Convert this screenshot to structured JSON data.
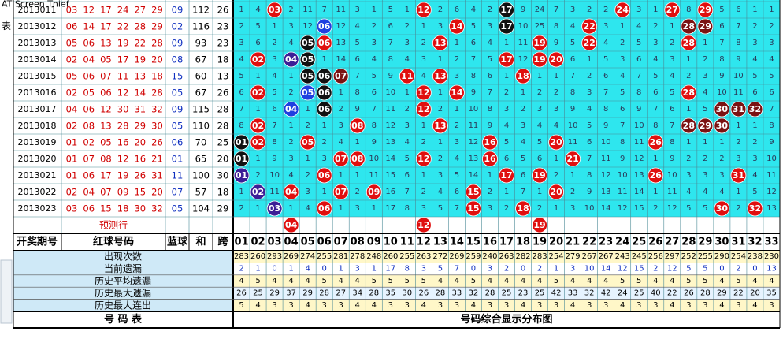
{
  "window_title": "AT Screen Thief",
  "side_text": "表",
  "header": {
    "period": "开奖期号",
    "red": "红球号码",
    "blue": "蓝球",
    "sum": "和",
    "span": "跨",
    "numbers": [
      "01",
      "02",
      "03",
      "04",
      "05",
      "06",
      "07",
      "08",
      "09",
      "10",
      "11",
      "12",
      "13",
      "14",
      "15",
      "16",
      "17",
      "18",
      "19",
      "20",
      "21",
      "22",
      "23",
      "24",
      "25",
      "26",
      "27",
      "28",
      "29",
      "30",
      "31",
      "32",
      "33"
    ]
  },
  "rows": [
    {
      "period": "2013011",
      "reds": [
        "03",
        "12",
        "17",
        "24",
        "27",
        "29"
      ],
      "blue": "09",
      "sum": 112,
      "span": 26,
      "cells": [
        1,
        4,
        {
          "text": "03",
          "color": "#e00f0f"
        },
        2,
        11,
        7,
        11,
        3,
        1,
        5,
        1,
        {
          "text": "12",
          "color": "#e00f0f"
        },
        2,
        6,
        4,
        2,
        {
          "text": "17",
          "color": "#111111"
        },
        9,
        24,
        7,
        3,
        2,
        2,
        {
          "text": "24",
          "color": "#e00f0f"
        },
        3,
        1,
        {
          "text": "27",
          "color": "#e00f0f"
        },
        8,
        {
          "text": "29",
          "color": "#e00f0f"
        },
        5,
        6,
        1,
        1
      ]
    },
    {
      "period": "2013012",
      "reds": [
        "06",
        "14",
        "17",
        "22",
        "28",
        "29"
      ],
      "blue": "02",
      "sum": 116,
      "span": 23,
      "cells": [
        2,
        5,
        1,
        3,
        12,
        {
          "text": "06",
          "color": "#1f3fe0"
        },
        12,
        4,
        2,
        6,
        2,
        1,
        3,
        {
          "text": "14",
          "color": "#e00f0f"
        },
        5,
        3,
        {
          "text": "17",
          "color": "#111111"
        },
        10,
        25,
        8,
        4,
        {
          "text": "22",
          "color": "#e00f0f"
        },
        3,
        1,
        4,
        2,
        1,
        {
          "text": "28",
          "color": "#7b1212"
        },
        {
          "text": "29",
          "color": "#7b1212"
        },
        6,
        7,
        2,
        2
      ]
    },
    {
      "period": "2013013",
      "reds": [
        "05",
        "06",
        "13",
        "19",
        "22",
        "28"
      ],
      "blue": "09",
      "sum": 93,
      "span": 23,
      "cells": [
        3,
        6,
        2,
        4,
        {
          "text": "05",
          "color": "#111111"
        },
        {
          "text": "06",
          "color": "#e00f0f"
        },
        13,
        5,
        3,
        7,
        3,
        2,
        {
          "text": "13",
          "color": "#e00f0f"
        },
        1,
        6,
        4,
        1,
        11,
        {
          "text": "19",
          "color": "#e00f0f"
        },
        9,
        5,
        {
          "text": "22",
          "color": "#e00f0f"
        },
        4,
        2,
        5,
        3,
        2,
        {
          "text": "28",
          "color": "#e00f0f"
        },
        1,
        7,
        8,
        3,
        3
      ]
    },
    {
      "period": "2013014",
      "reds": [
        "02",
        "04",
        "05",
        "17",
        "19",
        "20"
      ],
      "blue": "08",
      "sum": 67,
      "span": 18,
      "cells": [
        4,
        {
          "text": "02",
          "color": "#e00f0f"
        },
        3,
        {
          "text": "04",
          "color": "#3c1e96"
        },
        {
          "text": "05",
          "color": "#111111"
        },
        1,
        14,
        6,
        4,
        8,
        4,
        3,
        1,
        2,
        7,
        5,
        {
          "text": "17",
          "color": "#e00f0f"
        },
        12,
        {
          "text": "19",
          "color": "#e00f0f"
        },
        {
          "text": "20",
          "color": "#e00f0f"
        },
        6,
        1,
        5,
        3,
        6,
        4,
        3,
        1,
        2,
        8,
        9,
        4,
        4
      ]
    },
    {
      "period": "2013015",
      "reds": [
        "05",
        "06",
        "07",
        "11",
        "13",
        "18"
      ],
      "blue": "15",
      "sum": 60,
      "span": 13,
      "cells": [
        5,
        1,
        4,
        1,
        {
          "text": "05",
          "color": "#111111"
        },
        {
          "text": "06",
          "color": "#111111"
        },
        {
          "text": "07",
          "color": "#7b1212"
        },
        7,
        5,
        9,
        {
          "text": "11",
          "color": "#e00f0f"
        },
        4,
        {
          "text": "13",
          "color": "#e00f0f"
        },
        3,
        8,
        6,
        1,
        {
          "text": "18",
          "color": "#e00f0f"
        },
        1,
        1,
        7,
        2,
        6,
        4,
        7,
        5,
        4,
        2,
        3,
        9,
        10,
        5,
        5
      ]
    },
    {
      "period": "2013016",
      "reds": [
        "02",
        "05",
        "06",
        "12",
        "14",
        "28"
      ],
      "blue": "05",
      "sum": 67,
      "span": 26,
      "cells": [
        6,
        {
          "text": "02",
          "color": "#e00f0f"
        },
        5,
        2,
        {
          "text": "05",
          "color": "#1f3fe0"
        },
        {
          "text": "06",
          "color": "#111111"
        },
        1,
        8,
        6,
        10,
        1,
        {
          "text": "12",
          "color": "#e00f0f"
        },
        1,
        {
          "text": "14",
          "color": "#e00f0f"
        },
        9,
        7,
        2,
        1,
        2,
        2,
        8,
        3,
        7,
        5,
        8,
        6,
        5,
        {
          "text": "28",
          "color": "#e00f0f"
        },
        4,
        10,
        11,
        6,
        6
      ]
    },
    {
      "period": "2013017",
      "reds": [
        "04",
        "06",
        "12",
        "30",
        "31",
        "32"
      ],
      "blue": "09",
      "sum": 115,
      "span": 28,
      "cells": [
        7,
        1,
        6,
        {
          "text": "04",
          "color": "#1f3fe0"
        },
        1,
        {
          "text": "06",
          "color": "#111111"
        },
        2,
        9,
        7,
        11,
        2,
        {
          "text": "12",
          "color": "#e00f0f"
        },
        2,
        1,
        10,
        8,
        3,
        2,
        3,
        3,
        9,
        4,
        8,
        6,
        9,
        7,
        6,
        1,
        5,
        {
          "text": "30",
          "color": "#7b1212"
        },
        {
          "text": "31",
          "color": "#7b1212"
        },
        {
          "text": "32",
          "color": "#7b1212"
        },
        7
      ]
    },
    {
      "period": "2013018",
      "reds": [
        "02",
        "08",
        "13",
        "28",
        "29",
        "30"
      ],
      "blue": "05",
      "sum": 110,
      "span": 28,
      "cells": [
        8,
        {
          "text": "02",
          "color": "#e00f0f"
        },
        7,
        1,
        2,
        1,
        3,
        {
          "text": "08",
          "color": "#e00f0f"
        },
        8,
        12,
        3,
        1,
        {
          "text": "13",
          "color": "#e00f0f"
        },
        2,
        11,
        9,
        4,
        3,
        4,
        4,
        10,
        5,
        9,
        7,
        10,
        8,
        7,
        {
          "text": "28",
          "color": "#7b1212"
        },
        {
          "text": "29",
          "color": "#7b1212"
        },
        {
          "text": "30",
          "color": "#7b1212"
        },
        1,
        1,
        8
      ]
    },
    {
      "period": "2013019",
      "reds": [
        "01",
        "02",
        "05",
        "16",
        "20",
        "26"
      ],
      "blue": "06",
      "sum": 70,
      "span": 25,
      "cells": [
        {
          "text": "01",
          "color": "#111111"
        },
        {
          "text": "02",
          "color": "#e00f0f"
        },
        8,
        2,
        {
          "text": "05",
          "color": "#e00f0f"
        },
        2,
        4,
        1,
        9,
        13,
        4,
        2,
        1,
        3,
        12,
        {
          "text": "16",
          "color": "#e00f0f"
        },
        5,
        4,
        5,
        {
          "text": "20",
          "color": "#e00f0f"
        },
        11,
        6,
        10,
        8,
        11,
        {
          "text": "26",
          "color": "#e00f0f"
        },
        8,
        1,
        1,
        1,
        2,
        2,
        9
      ]
    },
    {
      "period": "2013020",
      "reds": [
        "01",
        "07",
        "08",
        "12",
        "16",
        "21"
      ],
      "blue": "01",
      "sum": 65,
      "span": 20,
      "cells": [
        {
          "text": "01",
          "color": "#111111"
        },
        1,
        9,
        3,
        1,
        3,
        {
          "text": "07",
          "color": "#e00f0f"
        },
        {
          "text": "08",
          "color": "#e00f0f"
        },
        10,
        14,
        5,
        {
          "text": "12",
          "color": "#e00f0f"
        },
        2,
        4,
        13,
        {
          "text": "16",
          "color": "#e00f0f"
        },
        6,
        5,
        6,
        1,
        {
          "text": "21",
          "color": "#e00f0f"
        },
        7,
        11,
        9,
        12,
        1,
        9,
        2,
        2,
        2,
        3,
        3,
        10
      ]
    },
    {
      "period": "2013021",
      "reds": [
        "01",
        "06",
        "17",
        "19",
        "26",
        "31"
      ],
      "blue": "11",
      "sum": 100,
      "span": 30,
      "cells": [
        {
          "text": "01",
          "color": "#3c1e96"
        },
        2,
        10,
        4,
        2,
        {
          "text": "06",
          "color": "#e00f0f"
        },
        1,
        1,
        11,
        15,
        6,
        1,
        3,
        5,
        14,
        1,
        {
          "text": "17",
          "color": "#e00f0f"
        },
        6,
        {
          "text": "19",
          "color": "#e00f0f"
        },
        2,
        1,
        8,
        12,
        10,
        13,
        {
          "text": "26",
          "color": "#e00f0f"
        },
        10,
        3,
        3,
        3,
        {
          "text": "31",
          "color": "#e00f0f"
        },
        4,
        11
      ]
    },
    {
      "period": "2013022",
      "reds": [
        "02",
        "04",
        "07",
        "09",
        "15",
        "20"
      ],
      "blue": "07",
      "sum": 57,
      "span": 18,
      "cells": [
        1,
        {
          "text": "02",
          "color": "#3c1e96"
        },
        11,
        {
          "text": "04",
          "color": "#e00f0f"
        },
        3,
        1,
        {
          "text": "07",
          "color": "#e00f0f"
        },
        2,
        {
          "text": "09",
          "color": "#e00f0f"
        },
        16,
        7,
        2,
        4,
        6,
        {
          "text": "15",
          "color": "#e00f0f"
        },
        2,
        1,
        7,
        1,
        {
          "text": "20",
          "color": "#e00f0f"
        },
        2,
        9,
        13,
        11,
        14,
        1,
        11,
        4,
        4,
        4,
        1,
        5,
        12
      ]
    },
    {
      "period": "2013023",
      "reds": [
        "03",
        "06",
        "15",
        "18",
        "30",
        "32"
      ],
      "blue": "05",
      "sum": 104,
      "span": 29,
      "cells": [
        2,
        1,
        {
          "text": "03",
          "color": "#3c1e96"
        },
        1,
        4,
        {
          "text": "06",
          "color": "#e00f0f"
        },
        1,
        3,
        1,
        17,
        8,
        3,
        5,
        7,
        {
          "text": "15",
          "color": "#e00f0f"
        },
        3,
        2,
        {
          "text": "18",
          "color": "#e00f0f"
        },
        2,
        1,
        3,
        10,
        14,
        12,
        15,
        2,
        12,
        5,
        5,
        {
          "text": "30",
          "color": "#e00f0f"
        },
        2,
        {
          "text": "32",
          "color": "#e00f0f"
        },
        13
      ]
    }
  ],
  "predict": {
    "label": "预测行",
    "balls": [
      {
        "text": "04",
        "color": "#e00f0f"
      },
      {
        "text": "12",
        "color": "#e00f0f"
      },
      {
        "text": "19",
        "color": "#e00f0f"
      }
    ]
  },
  "stats": [
    {
      "label": "出现次数",
      "values": [
        283,
        260,
        293,
        269,
        274,
        255,
        281,
        278,
        248,
        260,
        255,
        263,
        272,
        269,
        259,
        240,
        263,
        282,
        283,
        254,
        279,
        267,
        267,
        243,
        245,
        256,
        297,
        252,
        255,
        290,
        254,
        238,
        230
      ]
    },
    {
      "label": "当前遗漏",
      "values": [
        2,
        1,
        0,
        1,
        4,
        0,
        1,
        3,
        1,
        17,
        8,
        3,
        5,
        7,
        0,
        3,
        2,
        0,
        2,
        1,
        3,
        10,
        14,
        12,
        15,
        2,
        12,
        5,
        5,
        0,
        2,
        0,
        13
      ]
    },
    {
      "label": "历史平均遗漏",
      "values": [
        4,
        5,
        4,
        4,
        4,
        5,
        4,
        4,
        5,
        5,
        5,
        5,
        4,
        4,
        5,
        4,
        4,
        4,
        4,
        5,
        4,
        4,
        4,
        5,
        5,
        4,
        4,
        5,
        5,
        4,
        5,
        4,
        4
      ]
    },
    {
      "label": "历史最大遗漏",
      "values": [
        26,
        25,
        29,
        37,
        29,
        28,
        27,
        34,
        28,
        35,
        30,
        26,
        28,
        33,
        32,
        28,
        25,
        23,
        25,
        42,
        33,
        32,
        42,
        24,
        25,
        40,
        22,
        26,
        28,
        29,
        22,
        20,
        35
      ]
    },
    {
      "label": "历史最大连出",
      "values": [
        5,
        4,
        3,
        3,
        4,
        3,
        3,
        4,
        4,
        3,
        3,
        4,
        3,
        3,
        4,
        3,
        3,
        4,
        3,
        3,
        4,
        3,
        3,
        4,
        3,
        3,
        4,
        3,
        3,
        4,
        3,
        4,
        3
      ]
    }
  ],
  "footer": {
    "left": "号 码 表",
    "right": "号码综合显示分布图"
  }
}
